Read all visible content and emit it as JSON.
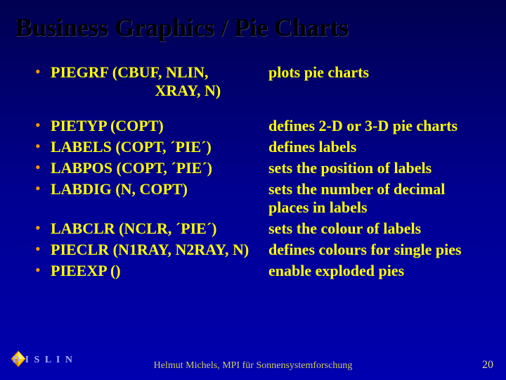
{
  "title": "Business Graphics / Pie Charts",
  "items": [
    {
      "func": "PIEGRF (CBUF, NLIN,\n                           XRAY, N)",
      "desc": "plots pie charts",
      "gapAfter": true
    },
    {
      "func": "PIETYP (COPT)",
      "desc": "defines 2-D or 3-D pie charts"
    },
    {
      "func": "LABELS (COPT, ´PIE´)",
      "desc": "defines labels"
    },
    {
      "func": "LABPOS (COPT, ´PIE´)",
      "desc": "sets the position of labels"
    },
    {
      "func": "LABDIG (N, COPT)",
      "desc": "sets the number of decimal places in labels"
    },
    {
      "func": "LABCLR (NCLR, ´PIE´)",
      "desc": "sets the colour of labels"
    },
    {
      "func": "PIECLR (N1RAY, N2RAY, N)",
      "desc": "defines colours for single pies"
    },
    {
      "func": "PIEEXP ()",
      "desc": "enable exploded pies"
    }
  ],
  "footer": "Helmut Michels, MPI für Sonnensystemforschung",
  "pageNumber": "20",
  "logoText": "D I S L I N",
  "colors": {
    "bullet": "#ff9900",
    "text": "#ffff00",
    "title": "#000000"
  }
}
